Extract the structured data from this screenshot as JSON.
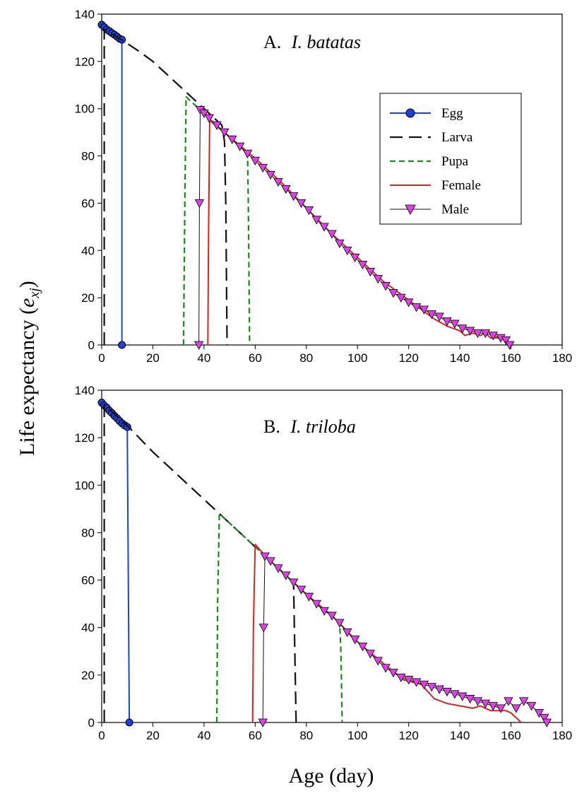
{
  "chart_data": {
    "type": "line",
    "xlabel": "Age (day)",
    "ylabel_main": "Life expectancy (",
    "ylabel_sym": "e",
    "ylabel_sub": "xj",
    "ylabel_close": ")",
    "xlim": [
      0,
      180
    ],
    "ylim": [
      0,
      140
    ],
    "xticks": [
      0,
      20,
      40,
      60,
      80,
      100,
      120,
      140,
      160,
      180
    ],
    "yticks": [
      0,
      20,
      40,
      60,
      80,
      100,
      120,
      140
    ],
    "colors": {
      "Egg": "#1f3fd6",
      "Larva": "#111111",
      "Pupa": "#1a8a1a",
      "Female": "#e02020",
      "Male": "#111111",
      "marker_fill": "#e040e8"
    },
    "legend": {
      "items": [
        "Egg",
        "Larva",
        "Pupa",
        "Female",
        "Male"
      ],
      "placement": "upper-right (panel A)"
    },
    "panels": [
      {
        "id": "A",
        "label_prefix": "A.",
        "label_species": "I. batatas",
        "series": [
          {
            "name": "Egg",
            "points": [
              [
                0,
                135.5
              ],
              [
                1,
                134.5
              ],
              [
                2,
                133.5
              ],
              [
                3,
                132.8
              ],
              [
                4,
                132
              ],
              [
                5,
                131.3
              ],
              [
                6,
                130.5
              ],
              [
                7,
                129.6
              ],
              [
                7.9,
                129.2
              ],
              [
                7.9,
                0
              ]
            ]
          },
          {
            "name": "Larva",
            "points": [
              [
                1,
                0
              ],
              [
                1,
                133.5
              ],
              [
                8,
                129
              ],
              [
                15,
                124
              ],
              [
                20,
                120
              ],
              [
                25,
                115
              ],
              [
                30,
                110
              ],
              [
                35,
                105
              ],
              [
                40,
                100
              ],
              [
                45,
                95
              ],
              [
                47,
                93
              ],
              [
                48,
                86
              ],
              [
                48.5,
                60
              ],
              [
                49,
                0
              ]
            ]
          },
          {
            "name": "Pupa",
            "points": [
              [
                32,
                0
              ],
              [
                32.5,
                60
              ],
              [
                33,
                105
              ],
              [
                36,
                102
              ],
              [
                40,
                98
              ],
              [
                45,
                93
              ],
              [
                50,
                88
              ],
              [
                55,
                83
              ],
              [
                57,
                82
              ],
              [
                57.3,
                60
              ],
              [
                57.8,
                0
              ]
            ]
          },
          {
            "name": "Female",
            "points": [
              [
                41.5,
                0
              ],
              [
                41.8,
                50
              ],
              [
                42.2,
                95
              ],
              [
                50,
                88
              ],
              [
                60,
                79
              ],
              [
                70,
                69
              ],
              [
                80,
                58
              ],
              [
                90,
                47
              ],
              [
                100,
                37
              ],
              [
                110,
                27
              ],
              [
                120,
                19
              ],
              [
                125,
                15
              ],
              [
                130,
                11
              ],
              [
                135,
                8
              ],
              [
                140,
                6
              ],
              [
                142,
                4
              ],
              [
                145,
                5
              ],
              [
                148,
                4
              ],
              [
                150,
                5
              ],
              [
                152,
                3
              ],
              [
                155,
                3
              ],
              [
                158,
                2
              ],
              [
                160,
                0
              ]
            ]
          },
          {
            "name": "Male",
            "markers": true,
            "points": [
              [
                38,
                0
              ],
              [
                38.2,
                60
              ],
              [
                38.5,
                99.5
              ],
              [
                40,
                98
              ],
              [
                42,
                96
              ],
              [
                45,
                93
              ],
              [
                48,
                90
              ],
              [
                51,
                87
              ],
              [
                54,
                84
              ],
              [
                57,
                81
              ],
              [
                60,
                78
              ],
              [
                63,
                75
              ],
              [
                66,
                72
              ],
              [
                69,
                69
              ],
              [
                72,
                66
              ],
              [
                75,
                63
              ],
              [
                78,
                60
              ],
              [
                81,
                57
              ],
              [
                84,
                53
              ],
              [
                87,
                50
              ],
              [
                90,
                47
              ],
              [
                93,
                43
              ],
              [
                96,
                40
              ],
              [
                99,
                37
              ],
              [
                102,
                34
              ],
              [
                105,
                31
              ],
              [
                108,
                28
              ],
              [
                111,
                25
              ],
              [
                114,
                22
              ],
              [
                117,
                20
              ],
              [
                120,
                18
              ],
              [
                123,
                16
              ],
              [
                126,
                15
              ],
              [
                129,
                13
              ],
              [
                132,
                12
              ],
              [
                135,
                10
              ],
              [
                138,
                9
              ],
              [
                141,
                7
              ],
              [
                144,
                6
              ],
              [
                147,
                5
              ],
              [
                150,
                5
              ],
              [
                153,
                4
              ],
              [
                156,
                3
              ],
              [
                158,
                2
              ],
              [
                159.5,
                0
              ]
            ]
          }
        ]
      },
      {
        "id": "B",
        "label_prefix": "B.",
        "label_species": "I. triloba",
        "series": [
          {
            "name": "Egg",
            "points": [
              [
                0,
                134.8
              ],
              [
                1,
                133.6
              ],
              [
                2,
                132.6
              ],
              [
                3,
                131.4
              ],
              [
                4,
                130.4
              ],
              [
                5,
                129.2
              ],
              [
                6,
                128.2
              ],
              [
                7,
                127
              ],
              [
                8,
                126
              ],
              [
                9,
                125.2
              ],
              [
                10,
                124.5
              ],
              [
                10.8,
                0
              ]
            ]
          },
          {
            "name": "Larva",
            "points": [
              [
                1,
                0
              ],
              [
                1,
                134
              ],
              [
                11,
                124
              ],
              [
                20,
                114
              ],
              [
                30,
                104
              ],
              [
                40,
                94
              ],
              [
                50,
                84
              ],
              [
                60,
                74
              ],
              [
                65,
                69
              ],
              [
                70,
                64
              ],
              [
                75,
                59
              ],
              [
                75.3,
                40
              ],
              [
                76,
                0
              ]
            ]
          },
          {
            "name": "Pupa",
            "points": [
              [
                45,
                0
              ],
              [
                45.3,
                50
              ],
              [
                46,
                88
              ],
              [
                50,
                84
              ],
              [
                55,
                79
              ],
              [
                60,
                74
              ],
              [
                65,
                69
              ],
              [
                70,
                64
              ],
              [
                75,
                59
              ],
              [
                80,
                54
              ],
              [
                85,
                49
              ],
              [
                90,
                45
              ],
              [
                93,
                42
              ],
              [
                93.5,
                30
              ],
              [
                94,
                0
              ]
            ]
          },
          {
            "name": "Female",
            "points": [
              [
                59,
                0
              ],
              [
                59.3,
                40
              ],
              [
                60,
                75
              ],
              [
                65,
                69
              ],
              [
                70,
                64
              ],
              [
                80,
                54
              ],
              [
                90,
                45
              ],
              [
                100,
                34
              ],
              [
                110,
                25
              ],
              [
                118,
                18
              ],
              [
                125,
                16
              ],
              [
                130,
                10
              ],
              [
                135,
                8
              ],
              [
                140,
                7
              ],
              [
                145,
                6
              ],
              [
                148,
                7
              ],
              [
                150,
                6
              ],
              [
                152,
                5
              ],
              [
                155,
                5
              ],
              [
                158,
                5
              ],
              [
                160,
                4
              ],
              [
                162,
                2
              ],
              [
                164,
                0
              ]
            ]
          },
          {
            "name": "Male",
            "markers": true,
            "points": [
              [
                63,
                0
              ],
              [
                63.3,
                40
              ],
              [
                63.8,
                70
              ],
              [
                66,
                68
              ],
              [
                69,
                65
              ],
              [
                72,
                62
              ],
              [
                75,
                59
              ],
              [
                78,
                56
              ],
              [
                81,
                53
              ],
              [
                84,
                50
              ],
              [
                87,
                47
              ],
              [
                90,
                45
              ],
              [
                93,
                42
              ],
              [
                96,
                38
              ],
              [
                99,
                35
              ],
              [
                102,
                32
              ],
              [
                105,
                29
              ],
              [
                108,
                26
              ],
              [
                111,
                23
              ],
              [
                114,
                21
              ],
              [
                117,
                19
              ],
              [
                120,
                18
              ],
              [
                123,
                17
              ],
              [
                126,
                16
              ],
              [
                129,
                15
              ],
              [
                132,
                14
              ],
              [
                135,
                13
              ],
              [
                138,
                12
              ],
              [
                141,
                11
              ],
              [
                144,
                10
              ],
              [
                147,
                9
              ],
              [
                150,
                8
              ],
              [
                153,
                7
              ],
              [
                156,
                6
              ],
              [
                159,
                9
              ],
              [
                162,
                6
              ],
              [
                165,
                9
              ],
              [
                168,
                7
              ],
              [
                171,
                4
              ],
              [
                173,
                2
              ],
              [
                174,
                0
              ]
            ]
          }
        ]
      }
    ]
  }
}
